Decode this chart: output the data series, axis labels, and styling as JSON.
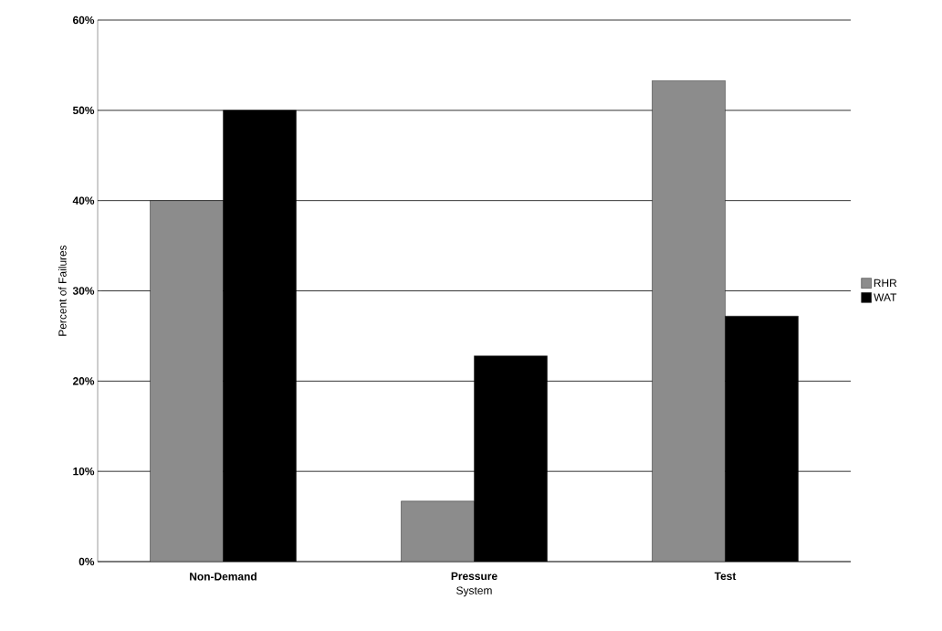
{
  "chart_data": {
    "type": "bar",
    "xlabel": "System",
    "ylabel": "Percent of Failures",
    "categories": [
      "Non-Demand",
      "Pressure",
      "Test"
    ],
    "series": [
      {
        "name": "RHR",
        "color": "#8c8c8c",
        "values": [
          40,
          6.7,
          53.3
        ]
      },
      {
        "name": "WAT",
        "color": "#000000",
        "values": [
          50,
          22.8,
          27.2
        ]
      }
    ],
    "ylim": [
      0,
      60
    ],
    "yticks": [
      {
        "value": 0,
        "label": "0%"
      },
      {
        "value": 10,
        "label": "10%"
      },
      {
        "value": 20,
        "label": "20%"
      },
      {
        "value": 30,
        "label": "30%"
      },
      {
        "value": 40,
        "label": "40%"
      },
      {
        "value": 50,
        "label": "50%"
      },
      {
        "value": 60,
        "label": "60%"
      }
    ],
    "grid": "y",
    "legend": "right"
  }
}
